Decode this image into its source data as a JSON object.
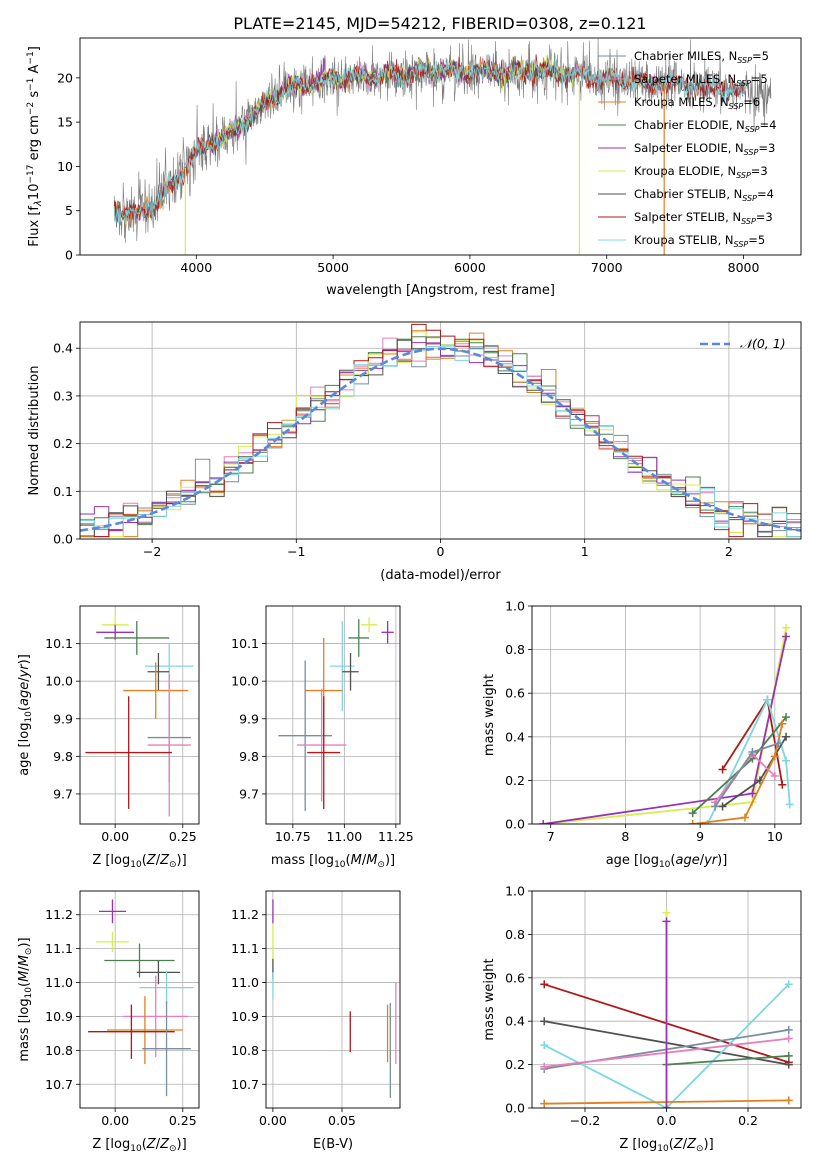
{
  "title": "PLATE=2145, MJD=54212, FIBERID=0308, z=0.121",
  "colors": {
    "Chabrier MILES": "#7a8ea0",
    "Salpeter MILES": "#e77fbc",
    "Kroupa MILES": "#e08020",
    "Chabrier ELODIE": "#4d8050",
    "Salpeter ELODIE": "#9a32b3",
    "Kroupa ELODIE": "#d8ec55",
    "Chabrier STELIB": "#505050",
    "Salpeter STELIB": "#b01818",
    "Kroupa STELIB": "#7cd8e0",
    "blue": "#5b88d8"
  },
  "chart_data": [
    {
      "id": "spectrum",
      "type": "line",
      "title": "PLATE=2145, MJD=54212, FIBERID=0308, z=0.121",
      "xlabel": "wavelength [Angstrom, rest frame]",
      "ylabel": "Flux [f_λ10^-17 erg cm^-2 s^-1 A^-1]",
      "xlim": [
        3150,
        8420
      ],
      "ylim": [
        0,
        24.5
      ],
      "xticks": [
        "4000",
        "5000",
        "6000",
        "7000",
        "8000"
      ],
      "yticks": [
        "0",
        "5",
        "10",
        "15",
        "20"
      ],
      "legend": "top-right",
      "legend_entries": [
        {
          "name": "Chabrier MILES, N_SSP=5",
          "prefix": "Chabrier MILES, N",
          "sub": "SSP",
          "suffix": "=5"
        },
        {
          "name": "Salpeter MILES, N_SSP=5",
          "prefix": "Salpeter MILES, N",
          "sub": "SSP",
          "suffix": "=5"
        },
        {
          "name": "Kroupa MILES, N_SSP=6",
          "prefix": "Kroupa MILES, N",
          "sub": "SSP",
          "suffix": "=6"
        },
        {
          "name": "Chabrier ELODIE, N_SSP=4",
          "prefix": "Chabrier ELODIE, N",
          "sub": "SSP",
          "suffix": "=4"
        },
        {
          "name": "Salpeter ELODIE, N_SSP=3",
          "prefix": "Salpeter ELODIE, N",
          "sub": "SSP",
          "suffix": "=3"
        },
        {
          "name": "Kroupa ELODIE, N_SSP=3",
          "prefix": "Kroupa ELODIE, N",
          "sub": "SSP",
          "suffix": "=3"
        },
        {
          "name": "Chabrier STELIB, N_SSP=4",
          "prefix": "Chabrier STELIB, N",
          "sub": "SSP",
          "suffix": "=4"
        },
        {
          "name": "Salpeter STELIB, N_SSP=3",
          "prefix": "Salpeter STELIB, N",
          "sub": "SSP",
          "suffix": "=3"
        },
        {
          "name": "Kroupa STELIB, N_SSP=5",
          "prefix": "Kroupa STELIB, N",
          "sub": "SSP",
          "suffix": "=5"
        }
      ],
      "continuum_anchors": {
        "x": [
          3400,
          3550,
          3700,
          3800,
          3900,
          4000,
          4100,
          4200,
          4300,
          4500,
          4700,
          4800,
          5000,
          5200,
          5500,
          5800,
          6100,
          6500,
          6800,
          7200,
          7500,
          7800,
          8000,
          8200
        ],
        "y": [
          5.2,
          4.4,
          5.8,
          7.6,
          9.4,
          11.5,
          12.6,
          13.2,
          14.2,
          17.2,
          19.0,
          19.2,
          20.0,
          20.1,
          20.5,
          20.8,
          20.6,
          20.8,
          20.2,
          19.6,
          19.2,
          18.7,
          18.4,
          18.1
        ]
      },
      "spikes": [
        {
          "x": 3920,
          "y": 0
        },
        {
          "x": 6800,
          "y": 0
        },
        {
          "x": 7420,
          "y": 0
        }
      ]
    },
    {
      "id": "residuals",
      "type": "histogram",
      "xlabel": "(data-model)/error",
      "ylabel": "Normed distribution",
      "xlim": [
        -2.5,
        2.5
      ],
      "ylim": [
        0,
        0.455
      ],
      "xticks": [
        "−2",
        "−1",
        "0",
        "1",
        "2"
      ],
      "yticks": [
        "0.0",
        "0.1",
        "0.2",
        "0.3",
        "0.4"
      ],
      "legend": "top-right",
      "legend_label": "𝒩(0, 1)",
      "reference_curve": "normal density, mean 0, sd 1",
      "bin_width": 0.1
    },
    {
      "id": "age-vs-Z",
      "type": "scatter",
      "xlabel": "Z [log10(Z/Z⊙)]",
      "ylabel": "age [log10(age/yr)]",
      "xlim": [
        -0.13,
        0.31
      ],
      "ylim": [
        9.62,
        10.2
      ],
      "xticks": [
        "0.00",
        "0.25"
      ],
      "yticks": [
        "9.7",
        "9.8",
        "9.9",
        "10.0",
        "10.1"
      ],
      "points": [
        {
          "model": "Kroupa ELODIE",
          "x": 0.0,
          "xerr": 0.05,
          "y": 10.15,
          "yerr": 0.025
        },
        {
          "model": "Salpeter ELODIE",
          "x": 0.0,
          "xerr": 0.07,
          "y": 10.13,
          "yerr": 0.02
        },
        {
          "model": "Chabrier ELODIE",
          "x": 0.08,
          "xerr": 0.12,
          "y": 10.115,
          "yerr": 0.045
        },
        {
          "model": "Kroupa STELIB",
          "x": 0.2,
          "xerr": 0.09,
          "y": 10.04,
          "yerr": 0.06
        },
        {
          "model": "Chabrier STELIB",
          "x": 0.16,
          "xerr": 0.04,
          "y": 10.025,
          "yerr": 0.05
        },
        {
          "model": "Kroupa MILES",
          "x": 0.15,
          "xerr": 0.12,
          "y": 9.975,
          "yerr": 0.075
        },
        {
          "model": "Chabrier MILES",
          "x": 0.2,
          "xerr": 0.08,
          "y": 9.85,
          "yerr": 0.12
        },
        {
          "model": "Salpeter MILES",
          "x": 0.2,
          "xerr": 0.08,
          "y": 9.83,
          "yerr": 0.19
        },
        {
          "model": "Salpeter STELIB",
          "x": 0.05,
          "xerr": 0.16,
          "y": 9.81,
          "yerr": 0.15
        }
      ]
    },
    {
      "id": "age-vs-mass",
      "type": "scatter",
      "xlabel": "mass [log10(M/M⊙)]",
      "ylabel": "",
      "xlim": [
        10.62,
        11.27
      ],
      "ylim": [
        9.62,
        10.2
      ],
      "xticks": [
        "10.75",
        "11.00",
        "11.25"
      ],
      "yticks": [
        "9.7",
        "9.8",
        "9.9",
        "10.0",
        "10.1"
      ],
      "points": [
        {
          "model": "Kroupa ELODIE",
          "x": 11.12,
          "xerr": 0.04,
          "y": 10.15,
          "yerr": 0.02
        },
        {
          "model": "Salpeter ELODIE",
          "x": 11.21,
          "xerr": 0.03,
          "y": 10.13,
          "yerr": 0.03
        },
        {
          "model": "Chabrier ELODIE",
          "x": 11.07,
          "xerr": 0.05,
          "y": 10.115,
          "yerr": 0.05
        },
        {
          "model": "Kroupa STELIB",
          "x": 10.99,
          "xerr": 0.06,
          "y": 10.04,
          "yerr": 0.12
        },
        {
          "model": "Chabrier STELIB",
          "x": 11.03,
          "xerr": 0.04,
          "y": 10.025,
          "yerr": 0.05
        },
        {
          "model": "Kroupa MILES",
          "x": 10.9,
          "xerr": 0.09,
          "y": 9.975,
          "yerr": 0.14
        },
        {
          "model": "Chabrier MILES",
          "x": 10.81,
          "xerr": 0.13,
          "y": 9.855,
          "yerr": 0.2
        },
        {
          "model": "Salpeter MILES",
          "x": 10.89,
          "xerr": 0.12,
          "y": 9.83,
          "yerr": 0.15
        },
        {
          "model": "Salpeter STELIB",
          "x": 10.9,
          "xerr": 0.08,
          "y": 9.81,
          "yerr": 0.15
        }
      ]
    },
    {
      "id": "massweight-vs-age",
      "type": "line",
      "xlabel": "age [log10(age/yr)]",
      "ylabel": "mass weight",
      "xlim": [
        6.75,
        10.35
      ],
      "ylim": [
        0,
        1
      ],
      "xticks": [
        "7",
        "8",
        "9",
        "10"
      ],
      "yticks": [
        "0.0",
        "0.2",
        "0.4",
        "0.6",
        "0.8",
        "1.0"
      ],
      "series": [
        {
          "model": "Kroupa ELODIE",
          "x": [
            6.9,
            9.7,
            10.15
          ],
          "y": [
            0.0,
            0.1,
            0.9
          ]
        },
        {
          "model": "Salpeter ELODIE",
          "x": [
            6.9,
            9.7,
            10.15
          ],
          "y": [
            0.0,
            0.14,
            0.86
          ]
        },
        {
          "model": "Salpeter STELIB",
          "x": [
            9.3,
            9.9,
            10.1
          ],
          "y": [
            0.25,
            0.57,
            0.18
          ]
        },
        {
          "model": "Kroupa STELIB",
          "x": [
            8.9,
            9.1,
            9.9,
            10.15,
            10.2
          ],
          "y": [
            0.0,
            0.0,
            0.57,
            0.29,
            0.09
          ]
        },
        {
          "model": "Chabrier STELIB",
          "x": [
            9.3,
            9.8,
            10.15
          ],
          "y": [
            0.08,
            0.2,
            0.4
          ]
        },
        {
          "model": "Chabrier ELODIE",
          "x": [
            8.9,
            9.7,
            10.15
          ],
          "y": [
            0.05,
            0.3,
            0.49
          ]
        },
        {
          "model": "Kroupa MILES",
          "x": [
            8.9,
            9.6,
            10.0,
            10.1
          ],
          "y": [
            0.0,
            0.03,
            0.31,
            0.46
          ]
        },
        {
          "model": "Salpeter MILES",
          "x": [
            9.2,
            9.7,
            10.0
          ],
          "y": [
            0.1,
            0.32,
            0.22
          ]
        },
        {
          "model": "Chabrier MILES",
          "x": [
            9.2,
            9.7,
            10.05
          ],
          "y": [
            0.08,
            0.33,
            0.37
          ]
        }
      ]
    },
    {
      "id": "mass-vs-Z",
      "type": "scatter",
      "xlabel": "Z [log10(Z/Z⊙)]",
      "ylabel": "mass [log10(M/M⊙)]",
      "xlim": [
        -0.13,
        0.31
      ],
      "ylim": [
        10.63,
        11.27
      ],
      "xticks": [
        "0.00",
        "0.25"
      ],
      "yticks": [
        "10.7",
        "10.8",
        "10.9",
        "11.0",
        "11.1",
        "11.2"
      ],
      "points": [
        {
          "model": "Salpeter ELODIE",
          "x": -0.01,
          "xerr": 0.05,
          "y": 11.21,
          "yerr": 0.035
        },
        {
          "model": "Kroupa ELODIE",
          "x": -0.01,
          "xerr": 0.06,
          "y": 11.12,
          "yerr": 0.03
        },
        {
          "model": "Chabrier ELODIE",
          "x": 0.09,
          "xerr": 0.13,
          "y": 11.065,
          "yerr": 0.05
        },
        {
          "model": "Chabrier STELIB",
          "x": 0.16,
          "xerr": 0.08,
          "y": 11.03,
          "yerr": 0.035
        },
        {
          "model": "Kroupa STELIB",
          "x": 0.19,
          "xerr": 0.1,
          "y": 10.985,
          "yerr": 0.05
        },
        {
          "model": "Salpeter MILES",
          "x": 0.15,
          "xerr": 0.12,
          "y": 10.9,
          "yerr": 0.12
        },
        {
          "model": "Kroupa MILES",
          "x": 0.11,
          "xerr": 0.14,
          "y": 10.86,
          "yerr": 0.1
        },
        {
          "model": "Salpeter STELIB",
          "x": 0.06,
          "xerr": 0.16,
          "y": 10.855,
          "yerr": 0.08
        },
        {
          "model": "Chabrier MILES",
          "x": 0.19,
          "xerr": 0.09,
          "y": 10.805,
          "yerr": 0.14
        }
      ]
    },
    {
      "id": "mass-vs-EBV",
      "type": "scatter",
      "xlabel": "E(B-V)",
      "ylabel": "",
      "xlim": [
        -0.005,
        0.092
      ],
      "ylim": [
        10.63,
        11.27
      ],
      "xticks": [
        "0.00",
        "0.05"
      ],
      "yticks": [
        "10.7",
        "10.8",
        "10.9",
        "11.0",
        "11.1",
        "11.2"
      ],
      "points": [
        {
          "model": "Salpeter ELODIE",
          "x": 0.0,
          "y": 11.21,
          "yerr": 0.035
        },
        {
          "model": "Kroupa ELODIE",
          "x": 0.0,
          "y": 11.12,
          "yerr": 0.05
        },
        {
          "model": "Chabrier STELIB",
          "x": 0.0,
          "y": 11.04,
          "yerr": 0.03
        },
        {
          "model": "Kroupa STELIB",
          "x": 0.0,
          "y": 10.99,
          "yerr": 0.04
        },
        {
          "model": "Salpeter STELIB",
          "x": 0.056,
          "y": 10.855,
          "yerr": 0.06
        },
        {
          "model": "Kroupa MILES",
          "x": 0.083,
          "y": 10.85,
          "yerr": 0.085
        },
        {
          "model": "Salpeter MILES",
          "x": 0.089,
          "y": 10.88,
          "yerr": 0.12
        },
        {
          "model": "Chabrier MILES",
          "x": 0.085,
          "y": 10.8,
          "yerr": 0.14
        }
      ]
    },
    {
      "id": "massweight-vs-Z",
      "type": "line",
      "xlabel": "Z [log10(Z/Z⊙)]",
      "ylabel": "mass weight",
      "xlim": [
        -0.33,
        0.33
      ],
      "ylim": [
        0,
        1
      ],
      "xticks": [
        "−0.2",
        "0.0",
        "0.2"
      ],
      "yticks": [
        "0.0",
        "0.2",
        "0.4",
        "0.6",
        "0.8",
        "1.0"
      ],
      "series": [
        {
          "model": "Salpeter STELIB",
          "x": [
            -0.3,
            0.3
          ],
          "y": [
            0.57,
            0.21
          ]
        },
        {
          "model": "Chabrier STELIB",
          "x": [
            -0.3,
            0.3
          ],
          "y": [
            0.4,
            0.2
          ]
        },
        {
          "model": "Kroupa STELIB",
          "x": [
            -0.3,
            0.0,
            0.3
          ],
          "y": [
            0.29,
            0.0,
            0.57
          ]
        },
        {
          "model": "Chabrier MILES",
          "x": [
            -0.3,
            0.3
          ],
          "y": [
            0.18,
            0.36
          ]
        },
        {
          "model": "Salpeter MILES",
          "x": [
            -0.3,
            0.3
          ],
          "y": [
            0.19,
            0.32
          ]
        },
        {
          "model": "Kroupa MILES",
          "x": [
            -0.3,
            0.3
          ],
          "y": [
            0.02,
            0.035
          ]
        },
        {
          "model": "Chabrier ELODIE",
          "x": [
            0.0,
            0.3
          ],
          "y": [
            0.2,
            0.24
          ]
        },
        {
          "model": "Kroupa ELODIE",
          "x": [
            0.0,
            0.0
          ],
          "y": [
            0.0,
            0.9
          ]
        },
        {
          "model": "Salpeter ELODIE",
          "x": [
            0.0,
            0.0
          ],
          "y": [
            0.0,
            0.86
          ]
        }
      ]
    }
  ]
}
